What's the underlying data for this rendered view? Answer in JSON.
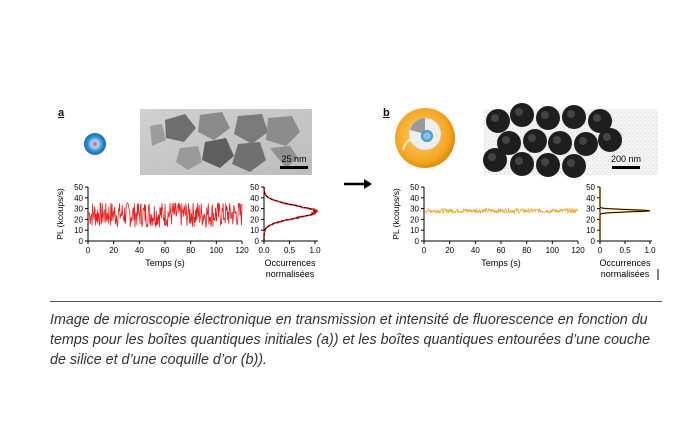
{
  "figure": {
    "panel_a": {
      "letter": "a",
      "scale_bar": "25 nm",
      "main_plot": {
        "ylabel": "PL (kcoups/s)",
        "xlabel": "Temps (s)",
        "xticks": [
          "0",
          "20",
          "40",
          "60",
          "80",
          "100",
          "120"
        ],
        "yticks": [
          "0",
          "10",
          "20",
          "30",
          "40",
          "50"
        ]
      },
      "hist_plot": {
        "xlabel_line1": "Occurrences",
        "xlabel_line2": "normalisées",
        "xticks": [
          "0.0",
          "0.5",
          "1.0"
        ],
        "yticks": [
          "0",
          "10",
          "20",
          "30",
          "40",
          "50"
        ]
      }
    },
    "panel_b": {
      "letter": "b",
      "scale_bar": "200 nm",
      "main_plot": {
        "ylabel": "PL (kcoups/s)",
        "xlabel": "Temps (s)",
        "xticks": [
          "0",
          "20",
          "40",
          "60",
          "80",
          "100",
          "120"
        ],
        "yticks": [
          "0",
          "10",
          "20",
          "30",
          "40",
          "50"
        ]
      },
      "hist_plot": {
        "xlabel_line1": "Occurrences",
        "xlabel_line2": "normalisées",
        "xticks": [
          "0",
          "0.5",
          "1.0"
        ],
        "yticks": [
          "0",
          "10",
          "20",
          "30",
          "40",
          "50"
        ]
      }
    },
    "colors": {
      "trace_a": "#e02020",
      "trace_b": "#f0a020",
      "fit_line": "#000000",
      "shell_gold": "#f5a623"
    }
  },
  "chart_data": [
    {
      "type": "line",
      "panel": "a",
      "xlabel": "Temps (s)",
      "ylabel": "PL (kcoups/s)",
      "xlim": [
        0,
        120
      ],
      "ylim": [
        0,
        50
      ],
      "series": [
        {
          "x": [
            0,
            120
          ],
          "y_mean": 25,
          "y_range": [
            10,
            35
          ],
          "color": "#e02020"
        }
      ]
    },
    {
      "type": "line",
      "panel": "a-histogram",
      "xlabel": "Occurrences normalisées",
      "xlim": [
        0,
        1.0
      ],
      "ylim": [
        0,
        50
      ],
      "series": [
        {
          "peak_y": 27,
          "peak_x": 1.0,
          "spread": 6
        }
      ]
    },
    {
      "type": "line",
      "panel": "b",
      "xlabel": "Temps (s)",
      "ylabel": "PL (kcoups/s)",
      "xlim": [
        0,
        120
      ],
      "ylim": [
        0,
        50
      ],
      "series": [
        {
          "x": [
            0,
            120
          ],
          "y_mean": 28,
          "y_range": [
            26,
            30
          ],
          "color": "#f0a020"
        }
      ]
    },
    {
      "type": "line",
      "panel": "b-histogram",
      "xlabel": "Occurrences normalisées",
      "xlim": [
        0,
        1.0
      ],
      "ylim": [
        0,
        50
      ],
      "series": [
        {
          "peak_y": 28,
          "peak_x": 1.0,
          "spread": 1
        }
      ]
    }
  ],
  "caption": "Image de microscopie électronique en transmission et intensité de fluorescence en fonction du temps pour les boîtes quantiques initiales (a)) et les boîtes quantiques entourées d’une couche de silice et d’une coquille d’or (b))."
}
